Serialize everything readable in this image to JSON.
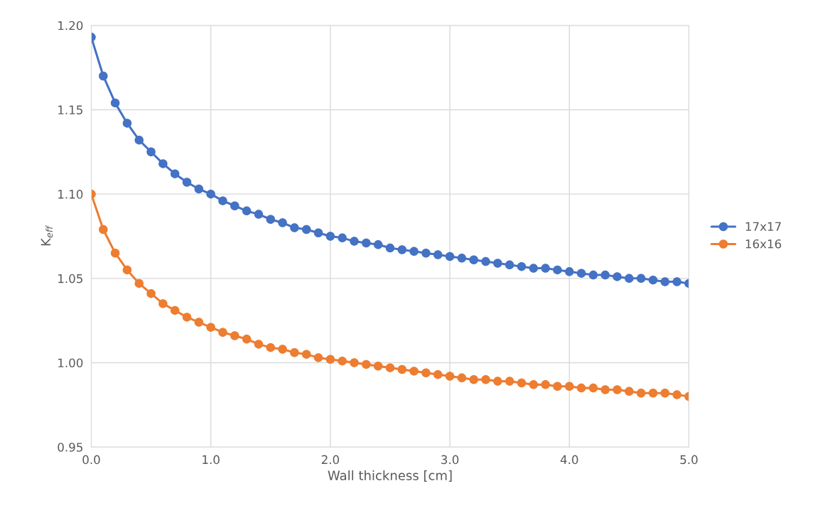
{
  "chart_data": {
    "type": "line",
    "xlabel": "Wall thickness [cm]",
    "ylabel": "K$_{eff}$",
    "x": [
      0,
      0.1,
      0.2,
      0.3,
      0.4,
      0.5,
      0.6,
      0.7,
      0.8,
      0.9,
      1.0,
      1.1,
      1.2,
      1.3,
      1.4,
      1.5,
      1.6,
      1.7,
      1.8,
      1.9,
      2.0,
      2.1,
      2.2,
      2.3,
      2.4,
      2.5,
      2.6,
      2.7,
      2.8,
      2.9,
      3.0,
      3.1,
      3.2,
      3.3,
      3.4,
      3.5,
      3.6,
      3.7,
      3.8,
      3.9,
      4.0,
      4.1,
      4.2,
      4.3,
      4.4,
      4.5,
      4.6,
      4.7,
      4.8,
      4.9,
      5.0
    ],
    "series": [
      {
        "name": "17x17",
        "color": "#4472c4",
        "values": [
          1.193,
          1.17,
          1.154,
          1.142,
          1.132,
          1.125,
          1.118,
          1.112,
          1.107,
          1.103,
          1.1,
          1.096,
          1.093,
          1.09,
          1.088,
          1.085,
          1.083,
          1.08,
          1.079,
          1.077,
          1.075,
          1.074,
          1.072,
          1.071,
          1.07,
          1.068,
          1.067,
          1.066,
          1.065,
          1.064,
          1.063,
          1.062,
          1.061,
          1.06,
          1.059,
          1.058,
          1.057,
          1.056,
          1.056,
          1.055,
          1.054,
          1.053,
          1.052,
          1.052,
          1.051,
          1.05,
          1.05,
          1.049,
          1.048,
          1.048,
          1.047
        ]
      },
      {
        "name": "16x16",
        "color": "#ed7d31",
        "values": [
          1.1,
          1.079,
          1.065,
          1.055,
          1.047,
          1.041,
          1.035,
          1.031,
          1.027,
          1.024,
          1.021,
          1.018,
          1.016,
          1.014,
          1.011,
          1.009,
          1.008,
          1.006,
          1.005,
          1.003,
          1.002,
          1.001,
          1.0,
          0.999,
          0.998,
          0.997,
          0.996,
          0.995,
          0.994,
          0.993,
          0.992,
          0.991,
          0.99,
          0.99,
          0.989,
          0.989,
          0.988,
          0.987,
          0.987,
          0.986,
          0.986,
          0.985,
          0.985,
          0.984,
          0.984,
          0.983,
          0.982,
          0.982,
          0.982,
          0.981,
          0.98
        ]
      }
    ],
    "xlim": [
      0,
      5
    ],
    "xticks": [
      {
        "value": 0,
        "label": "0.0"
      },
      {
        "value": 1,
        "label": "1.0"
      },
      {
        "value": 2,
        "label": "2.0"
      },
      {
        "value": 3,
        "label": "3.0"
      },
      {
        "value": 4,
        "label": "4.0"
      },
      {
        "value": 5,
        "label": "5.0"
      }
    ],
    "ylim": [
      0.95,
      1.2
    ],
    "yticks": [
      {
        "value": 0.95,
        "label": "0.95"
      },
      {
        "value": 1.0,
        "label": "1.00"
      },
      {
        "value": 1.05,
        "label": "1.05"
      },
      {
        "value": 1.1,
        "label": "1.10"
      },
      {
        "value": 1.15,
        "label": "1.15"
      },
      {
        "value": 1.2,
        "label": "1.20"
      }
    ],
    "grid": true,
    "legend": "right",
    "marker": "circle",
    "line_style": "solid"
  }
}
